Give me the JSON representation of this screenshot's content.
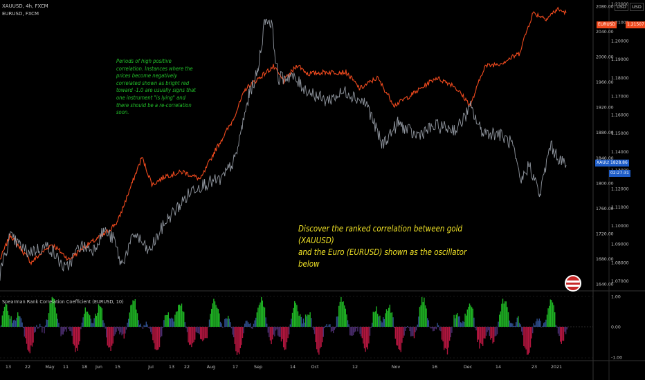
{
  "header": {
    "line1": "XAUUSD, 4h, FXCM",
    "line2": "EURUSD, FXCM"
  },
  "axis": {
    "left_currency": "USD",
    "right_currency": "USD"
  },
  "annotations": {
    "green_note": "Periods of high positive correlation. Instances where the prices become negatively correlated shown as bright red toward -1.0 are usually signs that one instrument \"is lying\" and there should be a re-correlation soon.",
    "yellow_line1": "Discover the ranked correlation between gold (XAUUSD)",
    "yellow_line2": "and the Euro (EURUSD) shown as the oscillator below"
  },
  "oscillator": {
    "title": "Spearman Rank Correlation Coefficient (EURUSD, 10)"
  },
  "tags": {
    "eurusd_name": "EURUSD",
    "eurusd_value": "1.21507",
    "xauusd_name": "XAUUSD",
    "xauusd_value": "1828.86",
    "countdown": "02:27:31"
  },
  "colors": {
    "gold": "#9aa0aa",
    "euro": "#f04a1e",
    "osc_pos": "#1fb324",
    "osc_neg": "#b3163f",
    "annot_green": "#22c02a",
    "annot_yellow": "#f0e226",
    "euro_tag": "#f04a1e",
    "gold_tag": "#1e5dc8"
  },
  "chart_data": {
    "type": "line",
    "x_ticks": [
      "13",
      "22",
      "May",
      "11",
      "18",
      "Jun",
      "15",
      "Jul",
      "13",
      "22",
      "Aug",
      "17",
      "Sep",
      "14",
      "Oct",
      "12",
      "Nov",
      "16",
      "Dec",
      "14",
      "23",
      "2021"
    ],
    "left_ticks": [
      "2080.00",
      "2040.00",
      "2000.00",
      "1960.00",
      "1920.00",
      "1880.00",
      "1840.00",
      "1800.00",
      "1760.00",
      "1720.00",
      "1680.00",
      "1640.00"
    ],
    "right_ticks": [
      "1.22000",
      "1.21000",
      "1.20000",
      "1.19000",
      "1.18000",
      "1.17000",
      "1.16000",
      "1.15000",
      "1.14000",
      "1.13000",
      "1.12000",
      "1.11000",
      "1.10000",
      "1.09000",
      "1.08000",
      "1.07000"
    ],
    "osc_ticks": [
      "1.00",
      "0.00",
      "-1.00"
    ],
    "series": [
      {
        "name": "XAUUSD",
        "unit": "USD",
        "x": [
          0,
          14,
          40,
          70,
          95,
          115,
          135,
          150,
          165,
          175,
          195,
          215,
          240,
          260,
          280,
          300,
          320,
          340,
          350,
          360,
          372,
          383,
          392,
          402,
          420,
          440,
          470,
          500,
          530,
          552,
          575,
          600,
          630,
          660,
          680,
          695,
          705,
          720,
          740,
          752,
          765,
          780,
          795,
          810,
          818
        ],
        "values": [
          1655,
          1715,
          1690,
          1700,
          1662,
          1700,
          1695,
          1725,
          1710,
          1670,
          1720,
          1690,
          1740,
          1765,
          1792,
          1800,
          1805,
          1838,
          1890,
          1940,
          1975,
          2060,
          2055,
          1965,
          1970,
          1950,
          1930,
          1945,
          1925,
          1860,
          1895,
          1875,
          1890,
          1885,
          1920,
          1883,
          1880,
          1878,
          1862,
          1800,
          1830,
          1780,
          1860,
          1835,
          1828
        ]
      },
      {
        "name": "EURUSD",
        "unit": "EURUSD",
        "x": [
          0,
          15,
          45,
          75,
          100,
          120,
          150,
          170,
          190,
          205,
          220,
          240,
          265,
          290,
          310,
          335,
          355,
          375,
          395,
          410,
          430,
          445,
          470,
          500,
          520,
          545,
          570,
          600,
          630,
          655,
          680,
          700,
          725,
          750,
          770,
          790,
          805,
          818
        ],
        "values": [
          1.0815,
          1.095,
          1.08,
          1.09,
          1.0815,
          1.088,
          1.095,
          1.102,
          1.122,
          1.137,
          1.122,
          1.127,
          1.129,
          1.125,
          1.14,
          1.156,
          1.174,
          1.18,
          1.186,
          1.178,
          1.187,
          1.182,
          1.183,
          1.183,
          1.174,
          1.18,
          1.165,
          1.172,
          1.18,
          1.176,
          1.165,
          1.186,
          1.188,
          1.193,
          1.215,
          1.212,
          1.217,
          1.2151
        ]
      }
    ],
    "ylim_left": [
      1630,
      2090
    ],
    "ylim_right": [
      1.065,
      1.222
    ],
    "oscillator_range": [
      -1,
      1
    ]
  }
}
